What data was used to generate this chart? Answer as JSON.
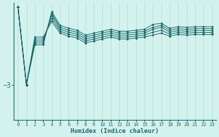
{
  "xlabel": "Humidex (Indice chaleur)",
  "ylabel": "",
  "background_color": "#d4f2ed",
  "line_color": "#1a6b6b",
  "grid_color": "#b8ddd8",
  "xlim": [
    -0.5,
    23.5
  ],
  "ylim": [
    -4.8,
    1.2
  ],
  "yticks": [
    -3
  ],
  "xticks": [
    0,
    1,
    2,
    3,
    4,
    5,
    6,
    7,
    8,
    9,
    10,
    11,
    12,
    13,
    14,
    15,
    16,
    17,
    18,
    19,
    20,
    21,
    22,
    23
  ],
  "series": [
    [
      1.0,
      -3.0,
      -0.55,
      -0.55,
      0.25,
      -0.35,
      -0.5,
      -0.6,
      -0.85,
      -0.75,
      -0.65,
      -0.55,
      -0.65,
      -0.65,
      -0.6,
      -0.55,
      -0.45,
      -0.35,
      -0.5,
      -0.42,
      -0.45,
      -0.42,
      -0.42,
      -0.42
    ],
    [
      1.0,
      -3.0,
      -0.65,
      -0.65,
      0.4,
      -0.25,
      -0.4,
      -0.5,
      -0.75,
      -0.65,
      -0.55,
      -0.45,
      -0.55,
      -0.55,
      -0.5,
      -0.45,
      -0.3,
      -0.2,
      -0.4,
      -0.32,
      -0.35,
      -0.32,
      -0.32,
      -0.32
    ],
    [
      1.0,
      -3.0,
      -0.75,
      -0.75,
      0.55,
      -0.15,
      -0.3,
      -0.4,
      -0.65,
      -0.55,
      -0.45,
      -0.35,
      -0.45,
      -0.45,
      -0.4,
      -0.35,
      -0.15,
      -0.05,
      -0.3,
      -0.22,
      -0.25,
      -0.22,
      -0.22,
      -0.22
    ],
    [
      1.0,
      -3.0,
      -0.85,
      -0.85,
      0.65,
      -0.05,
      -0.2,
      -0.3,
      -0.55,
      -0.45,
      -0.35,
      -0.25,
      -0.35,
      -0.35,
      -0.3,
      -0.25,
      -0.05,
      0.05,
      -0.2,
      -0.12,
      -0.15,
      -0.12,
      -0.12,
      -0.12
    ],
    [
      1.0,
      -3.0,
      -0.95,
      -0.95,
      0.75,
      0.05,
      -0.1,
      -0.2,
      -0.45,
      -0.35,
      -0.25,
      -0.15,
      -0.25,
      -0.25,
      -0.2,
      -0.15,
      0.1,
      0.15,
      -0.1,
      -0.02,
      -0.05,
      -0.02,
      -0.02,
      -0.02
    ]
  ]
}
